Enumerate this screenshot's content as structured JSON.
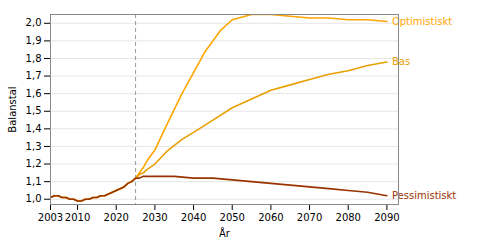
{
  "chart_data": {
    "type": "line",
    "title": "",
    "ylabel": "Balanstal",
    "xlabel": "År",
    "xlim": [
      2003,
      2093
    ],
    "ylim": [
      0.97,
      2.05
    ],
    "xticks": [
      2003,
      2010,
      2020,
      2030,
      2040,
      2050,
      2060,
      2070,
      2080,
      2090
    ],
    "yticks": [
      {
        "value": 1.0,
        "label": "1,0"
      },
      {
        "value": 1.1,
        "label": "1,1"
      },
      {
        "value": 1.2,
        "label": "1,2"
      },
      {
        "value": 1.3,
        "label": "1,3"
      },
      {
        "value": 1.4,
        "label": "1,4"
      },
      {
        "value": 1.5,
        "label": "1,5"
      },
      {
        "value": 1.6,
        "label": "1,6"
      },
      {
        "value": 1.7,
        "label": "1,7"
      },
      {
        "value": 1.8,
        "label": "1,8"
      },
      {
        "value": 1.9,
        "label": "1,9"
      },
      {
        "value": 2.0,
        "label": "2,0"
      }
    ],
    "grid": "y",
    "annotations": [
      {
        "type": "vline",
        "x": 2025,
        "line_style": "dashed"
      }
    ],
    "series": [
      {
        "name": "Optimistiskt",
        "color": "#FFA500",
        "x": [
          2003,
          2004,
          2005,
          2006,
          2007,
          2008,
          2009,
          2010,
          2011,
          2012,
          2013,
          2014,
          2015,
          2016,
          2017,
          2018,
          2019,
          2020,
          2021,
          2022,
          2023,
          2024,
          2025,
          2026,
          2027,
          2028,
          2030,
          2033,
          2037,
          2040,
          2043,
          2047,
          2050,
          2055,
          2060,
          2065,
          2070,
          2075,
          2080,
          2085,
          2090
        ],
        "values": [
          1.01,
          1.02,
          1.02,
          1.01,
          1.01,
          1.0,
          1.0,
          0.99,
          0.99,
          1.0,
          1.0,
          1.01,
          1.01,
          1.02,
          1.02,
          1.03,
          1.04,
          1.05,
          1.06,
          1.07,
          1.09,
          1.1,
          1.12,
          1.15,
          1.18,
          1.22,
          1.28,
          1.42,
          1.6,
          1.72,
          1.84,
          1.96,
          2.02,
          2.05,
          2.05,
          2.04,
          2.03,
          2.03,
          2.02,
          2.02,
          2.01
        ]
      },
      {
        "name": "Bas",
        "color": "#E8A000",
        "x": [
          2003,
          2004,
          2005,
          2006,
          2007,
          2008,
          2009,
          2010,
          2011,
          2012,
          2013,
          2014,
          2015,
          2016,
          2017,
          2018,
          2019,
          2020,
          2021,
          2022,
          2023,
          2024,
          2025,
          2026,
          2027,
          2028,
          2030,
          2033,
          2037,
          2040,
          2045,
          2050,
          2055,
          2060,
          2065,
          2070,
          2075,
          2080,
          2085,
          2090
        ],
        "values": [
          1.01,
          1.02,
          1.02,
          1.01,
          1.01,
          1.0,
          1.0,
          0.99,
          0.99,
          1.0,
          1.0,
          1.01,
          1.01,
          1.02,
          1.02,
          1.03,
          1.04,
          1.05,
          1.06,
          1.07,
          1.09,
          1.1,
          1.12,
          1.14,
          1.15,
          1.17,
          1.2,
          1.27,
          1.34,
          1.38,
          1.45,
          1.52,
          1.57,
          1.62,
          1.65,
          1.68,
          1.71,
          1.73,
          1.76,
          1.78
        ]
      },
      {
        "name": "Pessimistiskt",
        "color": "#993300",
        "x": [
          2003,
          2004,
          2005,
          2006,
          2007,
          2008,
          2009,
          2010,
          2011,
          2012,
          2013,
          2014,
          2015,
          2016,
          2017,
          2018,
          2019,
          2020,
          2021,
          2022,
          2023,
          2024,
          2025,
          2026,
          2027,
          2028,
          2030,
          2035,
          2040,
          2045,
          2050,
          2055,
          2060,
          2065,
          2070,
          2075,
          2080,
          2085,
          2090
        ],
        "values": [
          1.01,
          1.02,
          1.02,
          1.01,
          1.01,
          1.0,
          1.0,
          0.99,
          0.99,
          1.0,
          1.0,
          1.01,
          1.01,
          1.02,
          1.02,
          1.03,
          1.04,
          1.05,
          1.06,
          1.07,
          1.09,
          1.1,
          1.12,
          1.12,
          1.13,
          1.13,
          1.13,
          1.13,
          1.12,
          1.12,
          1.11,
          1.1,
          1.09,
          1.08,
          1.07,
          1.06,
          1.05,
          1.04,
          1.02
        ]
      }
    ]
  }
}
